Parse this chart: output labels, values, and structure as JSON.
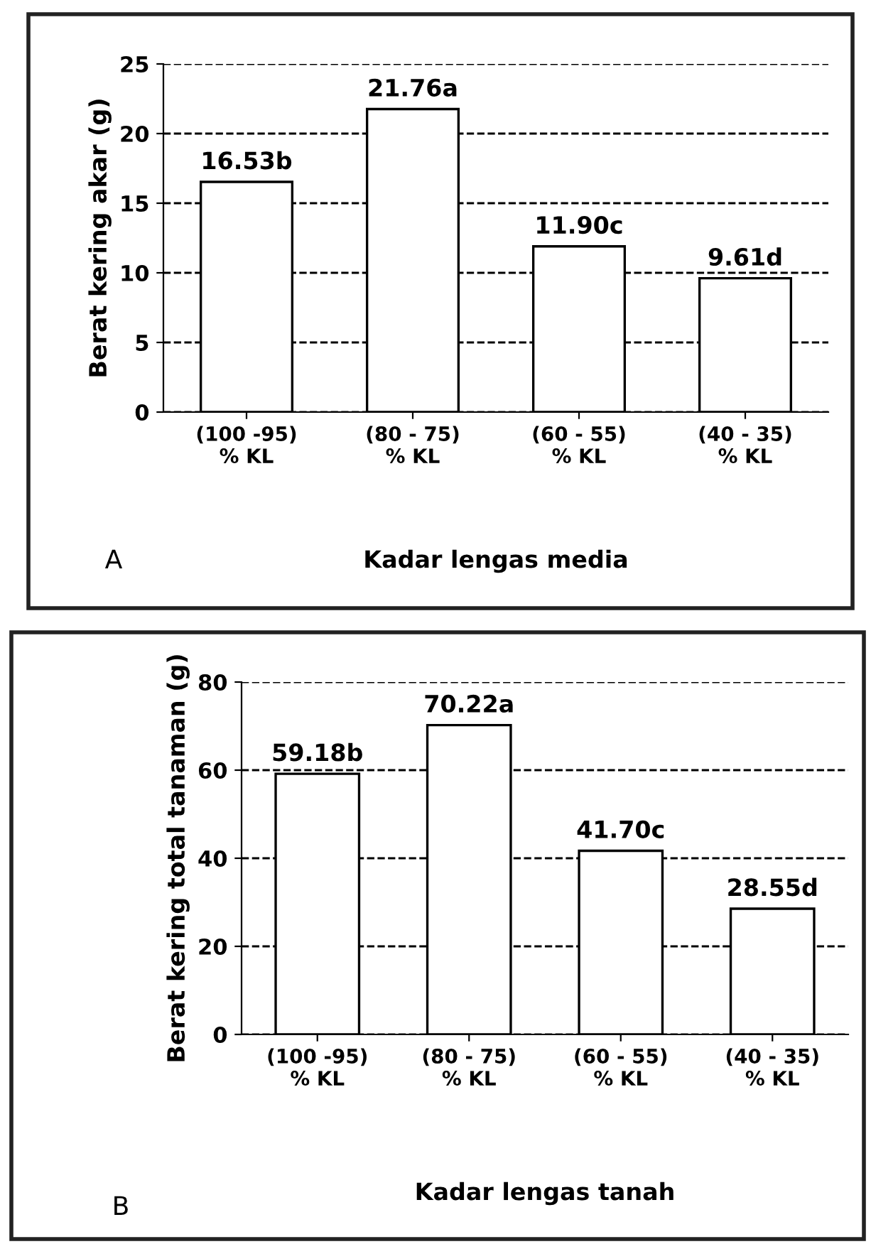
{
  "chart_data": [
    {
      "type": "bar",
      "ylabel": "Berat kering akar (g)",
      "xlabel": "Kadar lengas media",
      "annotations": [
        "A"
      ],
      "categories": [
        "(100 -95)\n% KL",
        "(80 - 75)\n% KL",
        "(60 - 55)\n% KL",
        "(40 - 35)\n% KL"
      ],
      "values": [
        16.53,
        21.76,
        11.9,
        9.61
      ],
      "value_labels": [
        "16.53b",
        "21.76a",
        "11.90c",
        "9.61d"
      ],
      "color": "#ffffff",
      "ylim": [
        0,
        25
      ],
      "yticks": [
        0,
        5,
        10,
        15,
        20,
        25
      ],
      "grid": "y",
      "line_style": "dashed"
    },
    {
      "type": "bar",
      "ylabel": "Berat kering total tanaman (g)",
      "xlabel": "Kadar lengas tanah",
      "annotations": [
        "B"
      ],
      "categories": [
        "(100 -95)\n% KL",
        "(80 - 75)\n% KL",
        "(60 - 55)\n% KL",
        "(40 - 35)\n% KL"
      ],
      "values": [
        59.18,
        70.22,
        41.7,
        28.55
      ],
      "value_labels": [
        "59.18b",
        "70.22a",
        "41.70c",
        "28.55d"
      ],
      "color": "#ffffff",
      "ylim": [
        0,
        80
      ],
      "yticks": [
        0,
        20,
        40,
        60,
        80
      ],
      "grid": "y",
      "line_style": "dashed"
    }
  ]
}
